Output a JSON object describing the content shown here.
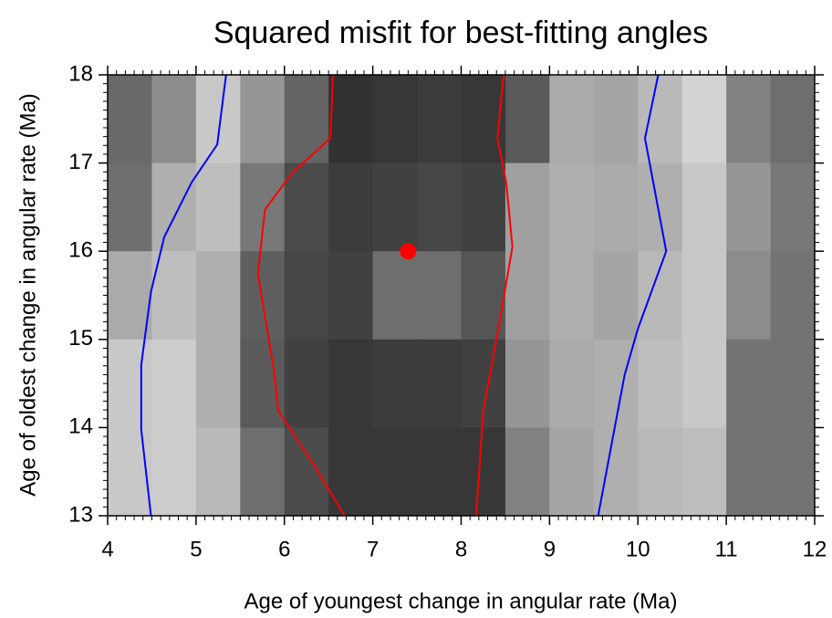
{
  "chart_data": {
    "type": "heatmap",
    "title": "Squared misfit for best-fitting angles",
    "xlabel": "Age of youngest change in angular rate (Ma)",
    "ylabel": "Age of oldest change in angular rate (Ma)",
    "xlim": [
      4,
      12
    ],
    "ylim": [
      13,
      18
    ],
    "xticks": [
      4,
      5,
      6,
      7,
      8,
      9,
      10,
      11,
      12
    ],
    "yticks": [
      13,
      14,
      15,
      16,
      17,
      18
    ],
    "x_edges": [
      4,
      4.5,
      5,
      5.5,
      6,
      6.5,
      7,
      7.5,
      8,
      8.5,
      9,
      9.5,
      10,
      10.5,
      11,
      11.5,
      12
    ],
    "y_edges": [
      18,
      17,
      16,
      15,
      14,
      13
    ],
    "z": [
      [
        105,
        140,
        200,
        150,
        100,
        50,
        55,
        60,
        55,
        90,
        170,
        165,
        185,
        210,
        130,
        110
      ],
      [
        110,
        175,
        190,
        120,
        75,
        60,
        65,
        70,
        65,
        160,
        175,
        170,
        175,
        200,
        150,
        120
      ],
      [
        170,
        190,
        175,
        95,
        70,
        65,
        110,
        110,
        85,
        160,
        175,
        165,
        185,
        200,
        140,
        115
      ],
      [
        200,
        205,
        175,
        90,
        65,
        55,
        60,
        60,
        65,
        150,
        170,
        175,
        190,
        200,
        115,
        115
      ],
      [
        200,
        205,
        185,
        110,
        75,
        55,
        55,
        55,
        55,
        130,
        165,
        175,
        185,
        190,
        115,
        115
      ]
    ],
    "series": [
      {
        "color": "#0000ff",
        "x": [
          4.49,
          4.38,
          4.38,
          4.49,
          4.64,
          4.95,
          5.24,
          5.34
        ],
        "y": [
          13,
          13.98,
          14.71,
          15.54,
          16.16,
          16.78,
          17.21,
          18
        ]
      },
      {
        "color": "#0000ff",
        "x": [
          9.55,
          9.85,
          10.0,
          10.32,
          10.08,
          10.23
        ],
        "y": [
          13,
          14.6,
          15.12,
          16.0,
          17.28,
          18
        ]
      },
      {
        "color": "#ff0000",
        "x": [
          6.68,
          6.34,
          5.93,
          5.88,
          5.7,
          5.78,
          6.08,
          6.52,
          6.55
        ],
        "y": [
          13,
          13.57,
          14.19,
          14.66,
          15.74,
          16.47,
          16.88,
          17.28,
          18
        ]
      },
      {
        "color": "#ff0000",
        "x": [
          8.17,
          8.25,
          8.44,
          8.58,
          8.51,
          8.41,
          8.48
        ],
        "y": [
          13,
          14.19,
          15.23,
          16.05,
          16.78,
          17.28,
          18
        ]
      }
    ],
    "point": {
      "x": 7.4,
      "y": 16.0,
      "color": "#ff0000"
    }
  }
}
